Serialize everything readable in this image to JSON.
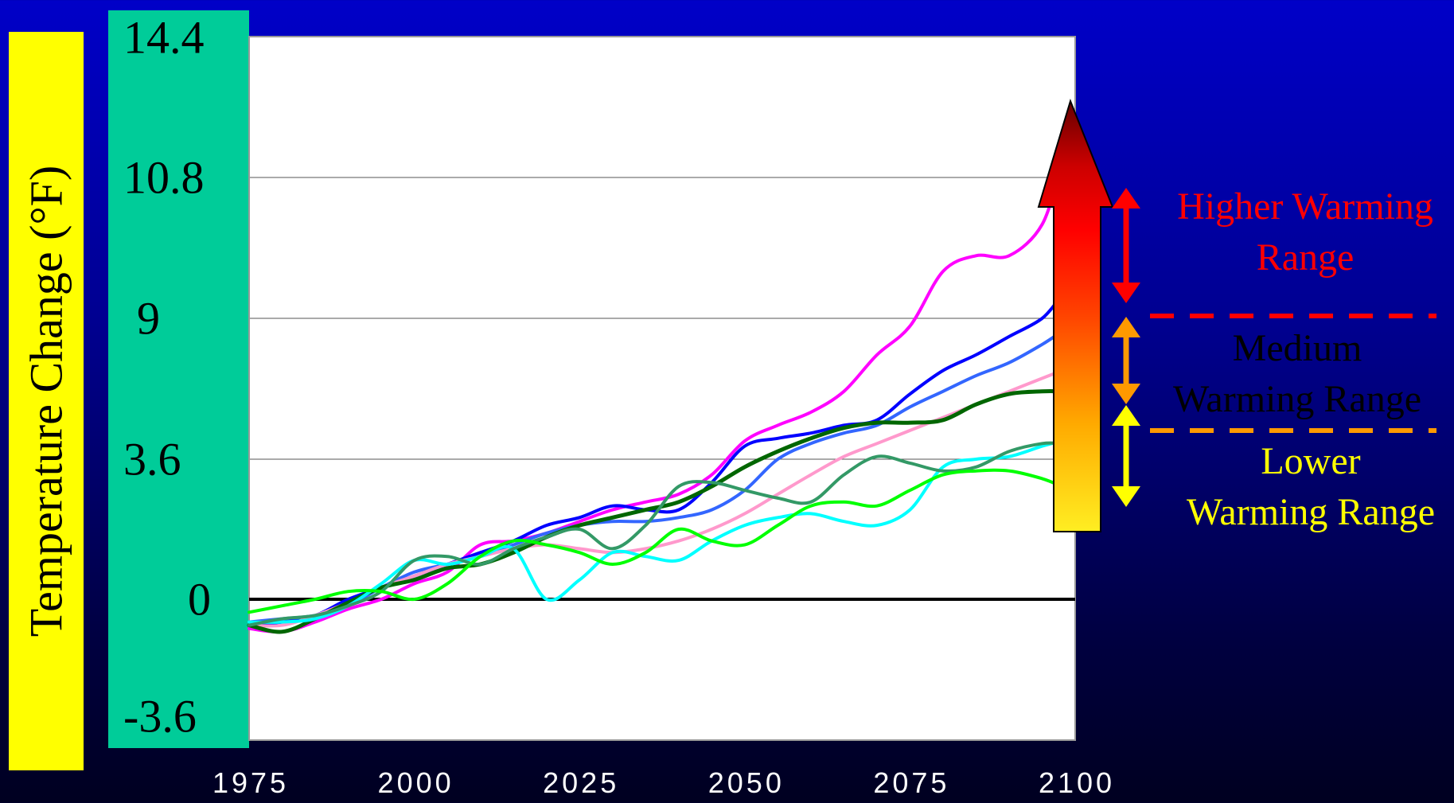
{
  "chart_data": {
    "type": "line",
    "ylabel": "Temperature Change (°F)",
    "ylim": [
      -3.6,
      14.4
    ],
    "yticks": [
      "14.4",
      "10.8",
      "9",
      "3.6",
      "0",
      "-3.6"
    ],
    "xlim": [
      1975,
      2100
    ],
    "xticks": [
      "1975",
      "2000",
      "2025",
      "2050",
      "2075",
      "2100"
    ],
    "grid": true,
    "colors": {
      "magenta": "#ff00ff",
      "blue": "#0000ff",
      "mid_blue": "#3366ff",
      "pink": "#ff99cc",
      "dark_green": "#006600",
      "cyan": "#00ffff",
      "teal": "#339966",
      "green": "#00ff00"
    },
    "series": [
      {
        "color": "magenta",
        "x": [
          1975,
          1980,
          1985,
          1990,
          1995,
          2000,
          2005,
          2010,
          2015,
          2020,
          2025,
          2030,
          2035,
          2040,
          2045,
          2050,
          2055,
          2060,
          2065,
          2070,
          2075,
          2080,
          2085,
          2090,
          2095,
          2098
        ],
        "y": [
          -0.9,
          -1.0,
          -0.7,
          -0.3,
          0.0,
          0.4,
          0.7,
          1.4,
          1.5,
          1.7,
          2.0,
          2.3,
          2.5,
          2.7,
          3.2,
          4.3,
          4.9,
          5.4,
          6.2,
          7.6,
          8.7,
          9.6,
          9.8,
          9.8,
          10.2,
          11.2
        ]
      },
      {
        "color": "blue",
        "x": [
          1975,
          1980,
          1985,
          1990,
          1995,
          2000,
          2005,
          2010,
          2015,
          2020,
          2025,
          2030,
          2035,
          2040,
          2045,
          2050,
          2055,
          2060,
          2065,
          2070,
          2075,
          2080,
          2085,
          2090,
          2095,
          2098
        ],
        "y": [
          -0.8,
          -0.7,
          -0.5,
          0.0,
          0.3,
          0.6,
          0.9,
          1.2,
          1.5,
          1.9,
          2.1,
          2.4,
          2.3,
          2.3,
          3.0,
          4.1,
          4.4,
          4.6,
          4.9,
          5.1,
          6.1,
          7.0,
          7.6,
          8.3,
          9.0,
          9.3
        ]
      },
      {
        "color": "mid_blue",
        "x": [
          1975,
          1980,
          1985,
          1990,
          1995,
          2000,
          2005,
          2010,
          2015,
          2020,
          2025,
          2030,
          2035,
          2040,
          2045,
          2050,
          2055,
          2060,
          2065,
          2070,
          2075,
          2080,
          2085,
          2090,
          2095,
          2098
        ],
        "y": [
          -0.7,
          -0.6,
          -0.5,
          -0.2,
          0.3,
          0.7,
          0.9,
          1.1,
          1.4,
          1.7,
          1.9,
          2.0,
          2.0,
          2.1,
          2.3,
          2.8,
          3.6,
          4.2,
          4.6,
          4.9,
          5.6,
          6.2,
          6.8,
          7.3,
          8.0,
          8.5
        ]
      },
      {
        "color": "pink",
        "x": [
          1975,
          1980,
          1985,
          1990,
          1995,
          2000,
          2005,
          2010,
          2015,
          2020,
          2025,
          2030,
          2035,
          2040,
          2045,
          2050,
          2055,
          2060,
          2065,
          2070,
          2075,
          2080,
          2085,
          2090,
          2095,
          2098
        ],
        "y": [
          -0.8,
          -0.8,
          -0.5,
          -0.1,
          0.3,
          0.6,
          0.9,
          1.1,
          1.3,
          1.4,
          1.3,
          1.2,
          1.3,
          1.5,
          1.8,
          2.2,
          2.7,
          3.2,
          3.7,
          4.2,
          4.7,
          5.2,
          5.7,
          6.2,
          6.7,
          7.0
        ]
      },
      {
        "color": "dark_green",
        "x": [
          1975,
          1980,
          1985,
          1990,
          1995,
          2000,
          2005,
          2010,
          2015,
          2020,
          2025,
          2030,
          2035,
          2040,
          2045,
          2050,
          2055,
          2060,
          2065,
          2070,
          2075,
          2080,
          2085,
          2090,
          2095,
          2098
        ],
        "y": [
          -0.8,
          -1.0,
          -0.6,
          -0.1,
          0.3,
          0.5,
          0.8,
          0.9,
          1.2,
          1.6,
          1.9,
          2.1,
          2.3,
          2.5,
          2.9,
          3.4,
          3.9,
          4.4,
          4.8,
          5.0,
          5.0,
          5.1,
          5.7,
          6.1,
          6.2,
          6.2
        ]
      },
      {
        "color": "cyan",
        "x": [
          1975,
          1980,
          1985,
          1990,
          1995,
          2000,
          2005,
          2010,
          2015,
          2020,
          2025,
          2030,
          2035,
          2040,
          2045,
          2050,
          2055,
          2060,
          2065,
          2070,
          2075,
          2080,
          2085,
          2090,
          2095,
          2098
        ],
        "y": [
          -0.7,
          -0.7,
          -0.6,
          -0.2,
          0.4,
          1.0,
          0.9,
          1.1,
          1.3,
          0.0,
          0.5,
          1.2,
          1.1,
          1.0,
          1.5,
          1.9,
          2.1,
          2.2,
          2.0,
          1.9,
          2.3,
          3.4,
          3.6,
          3.7,
          4.1,
          4.3
        ]
      },
      {
        "color": "teal",
        "x": [
          1975,
          1980,
          1985,
          1990,
          1995,
          2000,
          2005,
          2010,
          2015,
          2020,
          2025,
          2030,
          2035,
          2040,
          2045,
          2050,
          2055,
          2060,
          2065,
          2070,
          2075,
          2080,
          2085,
          2090,
          2095,
          2098
        ],
        "y": [
          -0.8,
          -0.6,
          -0.5,
          -0.2,
          0.2,
          1.0,
          1.1,
          0.9,
          1.3,
          1.6,
          1.8,
          1.3,
          1.9,
          2.9,
          3.0,
          2.8,
          2.6,
          2.5,
          3.2,
          3.7,
          3.5,
          3.3,
          3.4,
          3.9,
          4.2,
          4.2
        ]
      },
      {
        "color": "green",
        "x": [
          1975,
          1980,
          1985,
          1990,
          1995,
          2000,
          2005,
          2010,
          2015,
          2020,
          2025,
          2030,
          2035,
          2040,
          2045,
          2050,
          2055,
          2060,
          2065,
          2070,
          2075,
          2080,
          2085,
          2090,
          2095,
          2098
        ],
        "y": [
          -0.4,
          -0.2,
          0.0,
          0.2,
          0.2,
          0.0,
          0.4,
          1.1,
          1.5,
          1.4,
          1.2,
          0.9,
          1.2,
          1.8,
          1.5,
          1.4,
          1.9,
          2.4,
          2.5,
          2.4,
          2.8,
          3.2,
          3.3,
          3.3,
          3.1,
          2.9
        ]
      }
    ]
  },
  "ranges": {
    "higher": {
      "label_line1": "Higher Warming",
      "label_line2": "Range",
      "color": "#ff0000"
    },
    "medium": {
      "label_line1": "Medium",
      "label_line2": "Warming Range",
      "color": "#000000"
    },
    "lower": {
      "label_line1": "Lower",
      "label_line2": "Warming Range",
      "color": "#ffff00"
    },
    "arrow_colors": {
      "higher": "#ff0000",
      "medium": "#ff9900",
      "lower": "#ffff00"
    },
    "divider_colors": {
      "upper": "#ff0000",
      "lower": "#ff9900"
    }
  }
}
